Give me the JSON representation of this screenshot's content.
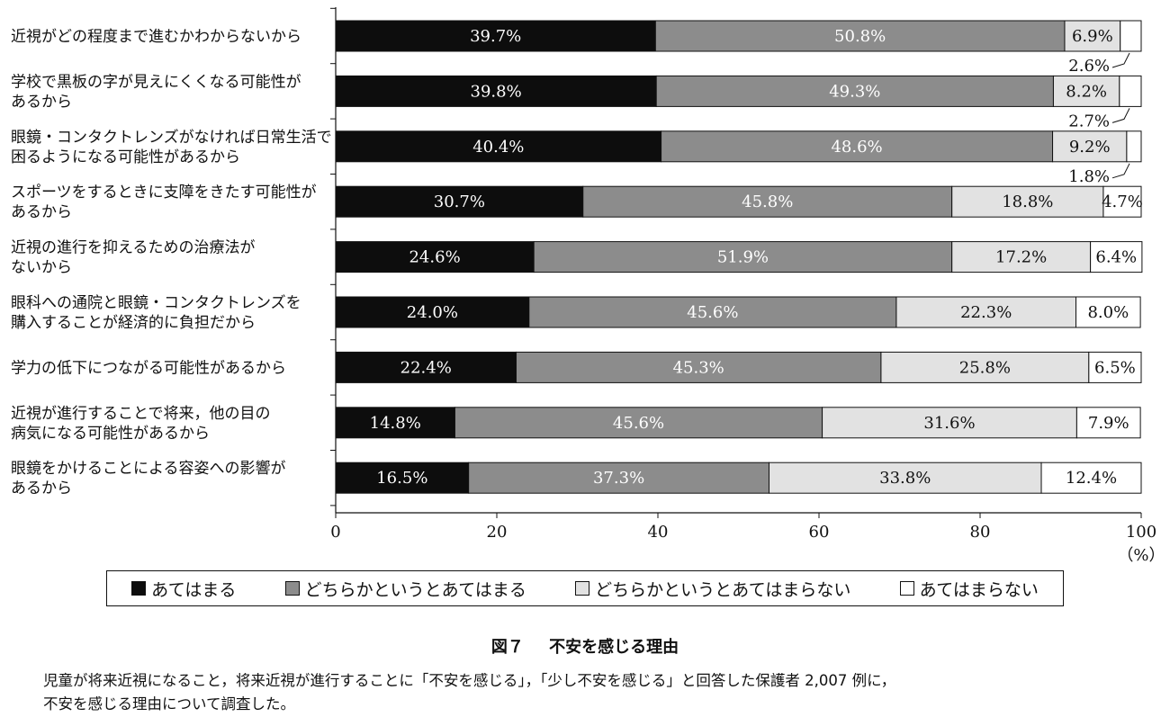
{
  "chart_data": {
    "type": "bar",
    "orientation": "horizontal",
    "stacked": true,
    "categories": [
      [
        "近視がどの程度まで進むかわからないから"
      ],
      [
        "学校で黒板の字が見えにくくなる可能性が",
        "あるから"
      ],
      [
        "眼鏡・コンタクトレンズがなければ日常生活で",
        "困るようになる可能性があるから"
      ],
      [
        "スポーツをするときに支障をきたす可能性が",
        "あるから"
      ],
      [
        "近視の進行を抑えるための治療法が",
        "ないから"
      ],
      [
        "眼科への通院と眼鏡・コンタクトレンズを",
        "購入することが経済的に負担だから"
      ],
      [
        "学力の低下につながる可能性があるから"
      ],
      [
        "近視が進行することで将来，他の目の",
        "病気になる可能性があるから"
      ],
      [
        "眼鏡をかけることによる容姿への影響が",
        "あるから"
      ]
    ],
    "series": [
      {
        "name": "あてはまる",
        "color": "#0d0d0d",
        "text_color": "#ffffff",
        "values": [
          39.7,
          39.8,
          40.4,
          30.7,
          24.6,
          24.0,
          22.4,
          14.8,
          16.5
        ],
        "labels": [
          "39.7%",
          "39.8%",
          "40.4%",
          "30.7%",
          "24.6%",
          "24.0%",
          "22.4%",
          "14.8%",
          "16.5%"
        ]
      },
      {
        "name": "どちらかというとあてはまる",
        "color": "#8c8c8c",
        "text_color": "#ffffff",
        "values": [
          50.8,
          49.3,
          48.6,
          45.8,
          51.9,
          45.6,
          45.3,
          45.6,
          37.3
        ],
        "labels": [
          "50.8%",
          "49.3%",
          "48.6%",
          "45.8%",
          "51.9%",
          "45.6%",
          "45.3%",
          "45.6%",
          "37.3%"
        ]
      },
      {
        "name": "どちらかというとあてはまらない",
        "color": "#e2e2e2",
        "text_color": "#111111",
        "values": [
          6.9,
          8.2,
          9.2,
          18.8,
          17.2,
          22.3,
          25.8,
          31.6,
          33.8
        ],
        "labels": [
          "6.9%",
          "8.2%",
          "9.2%",
          "18.8%",
          "17.2%",
          "22.3%",
          "25.8%",
          "31.6%",
          "33.8%"
        ]
      },
      {
        "name": "あてはまらない",
        "color": "#ffffff",
        "text_color": "#111111",
        "values": [
          2.6,
          2.7,
          1.8,
          4.7,
          6.4,
          8.0,
          6.5,
          7.9,
          12.4
        ],
        "labels": [
          "2.6%",
          "2.7%",
          "1.8%",
          "4.7%",
          "6.4%",
          "8.0%",
          "6.5%",
          "7.9%",
          "12.4%"
        ],
        "label_outside": [
          true,
          true,
          true,
          false,
          false,
          false,
          false,
          false,
          false
        ]
      }
    ],
    "xlim": [
      0,
      100
    ],
    "xticks": [
      0,
      20,
      40,
      60,
      80,
      100
    ],
    "xunit": "（%）",
    "legend_position": "bottom"
  },
  "figure": {
    "number": "図７",
    "title": "不安を感じる理由",
    "caption_lines": [
      "児童が将来近視になること，将来近視が進行することに「不安を感じる」，「少し不安を感じる」と回答した保護者 2,007 例に，",
      "不安を感じる理由について調査した。"
    ]
  }
}
